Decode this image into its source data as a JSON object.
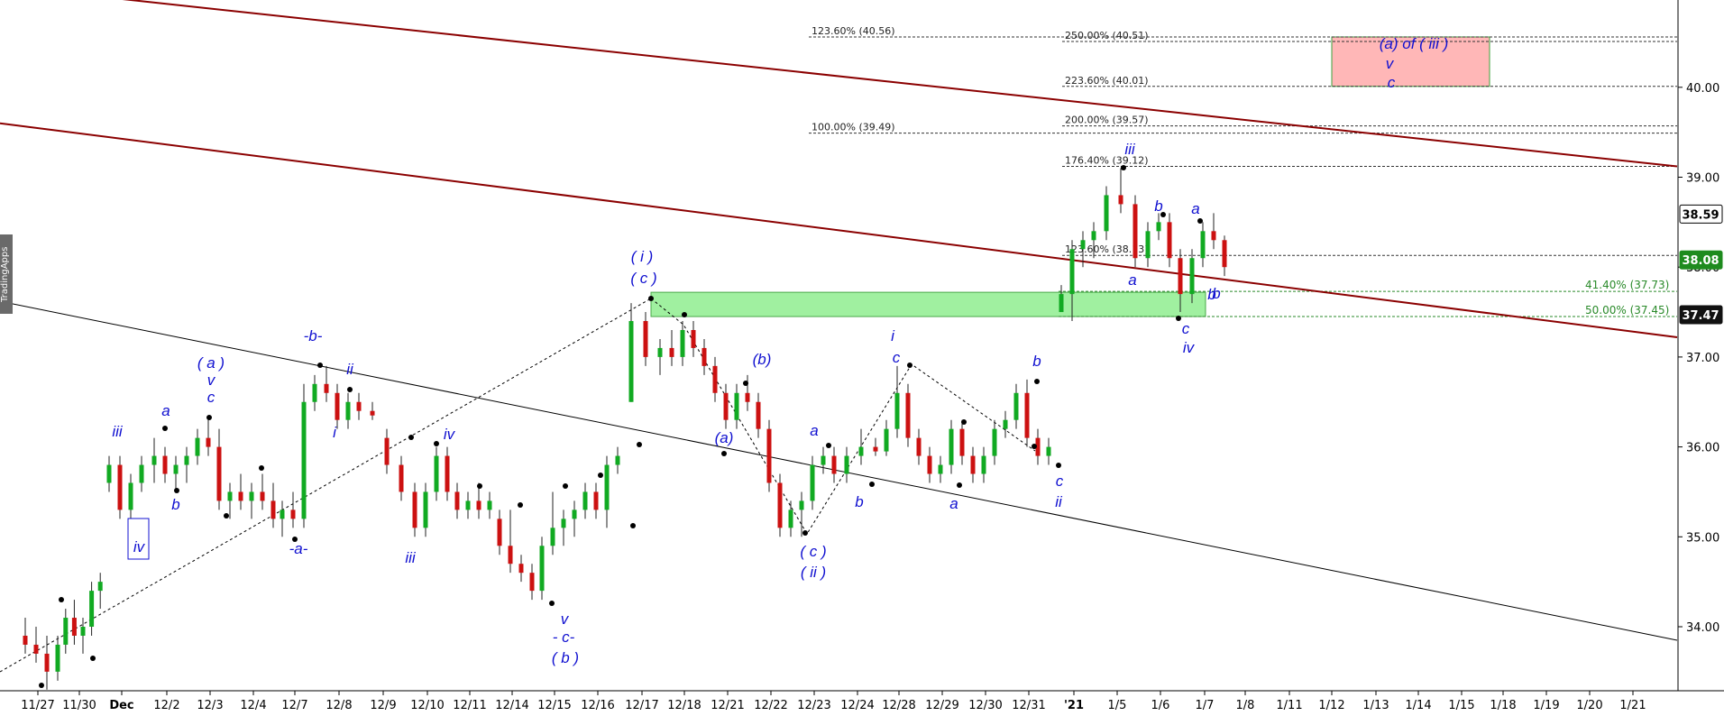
{
  "chart_data": {
    "type": "candlestick",
    "watermark": "TradingApps",
    "y_axis": {
      "ticks": [
        34.0,
        35.0,
        36.0,
        37.0,
        38.0,
        39.0,
        40.0
      ],
      "tick_labels": [
        "34.00",
        "35.00",
        "36.00",
        "37.00",
        "38.00",
        "39.00",
        "40.00"
      ],
      "range": [
        33.3,
        41.0
      ]
    },
    "x_axis": {
      "labels": [
        "11/27",
        "11/30",
        "Dec",
        "12/2",
        "12/3",
        "12/4",
        "12/7",
        "12/8",
        "12/9",
        "12/10",
        "12/11",
        "12/14",
        "12/15",
        "12/16",
        "12/17",
        "12/18",
        "12/21",
        "12/22",
        "12/23",
        "12/24",
        "12/28",
        "12/29",
        "12/30",
        "12/31",
        "'21",
        "1/5",
        "1/6",
        "1/7",
        "1/8",
        "1/11",
        "1/12",
        "1/13",
        "1/14",
        "1/15",
        "1/18",
        "1/19",
        "1/20",
        "1/21"
      ]
    },
    "price_tags": [
      {
        "value": "38.59",
        "price": 38.59,
        "bg": "#ffffff",
        "fg": "#000000",
        "border": "#000000"
      },
      {
        "value": "38.08",
        "price": 38.08,
        "bg": "#1e8b1e",
        "fg": "#ffffff",
        "border": "#1e8b1e"
      },
      {
        "value": "37.47",
        "price": 37.47,
        "bg": "#111111",
        "fg": "#ffffff",
        "border": "#111111"
      }
    ],
    "fib_levels": [
      {
        "label": "123.60% (40.56)",
        "price": 40.56
      },
      {
        "label": "250.00% (40.51)",
        "price": 40.51
      },
      {
        "label": "223.60% (40.01)",
        "price": 40.01
      },
      {
        "label": "100.00% (39.49)",
        "price": 39.49
      },
      {
        "label": "200.00% (39.57)",
        "price": 39.57
      },
      {
        "label": "176.40% (39.12)",
        "price": 39.12
      },
      {
        "label": "123.60% (38.13)",
        "price": 38.13
      },
      {
        "label": "41.40% (37.73)",
        "price": 37.73
      },
      {
        "label": "50.00% (37.45)",
        "price": 37.45
      }
    ],
    "zones": [
      {
        "name": "support-zone",
        "price_top": 37.72,
        "price_bottom": 37.45,
        "from_date": "12/17",
        "to_date": "1/7",
        "color": "#90ee90"
      },
      {
        "name": "target-zone",
        "price_top": 40.56,
        "price_bottom": 40.01,
        "from_date": "1/12",
        "to_date": "1/18",
        "color": "#ffb0b0"
      }
    ],
    "trend_lines": [
      {
        "name": "upper-channel",
        "color": "#8b0000",
        "points": [
          [
            "11/30",
            41.0
          ],
          [
            "1/21",
            39.12
          ]
        ]
      },
      {
        "name": "middle-channel",
        "color": "#8b0000",
        "points": [
          [
            "11/27",
            39.6
          ],
          [
            "1/21",
            37.22
          ]
        ]
      },
      {
        "name": "lower-channel",
        "color": "#000000",
        "points": [
          [
            "11/27",
            37.62
          ],
          [
            "1/21",
            33.85
          ]
        ]
      }
    ],
    "wave_labels": [
      "iii",
      "iv",
      "a",
      "b",
      "( a )",
      "v",
      "c",
      "-b-",
      "ii",
      "i",
      "-a-",
      "iii",
      "iv",
      "v",
      "- c-",
      "( b )",
      "( i )",
      "( c )",
      "(a)",
      "(b)",
      "( c )",
      "( ii )",
      "a",
      "b",
      "i",
      "c",
      "b",
      "a",
      "c",
      "ii",
      "b",
      "iii",
      "b",
      "a",
      "a",
      "c",
      "iv",
      "b",
      "(a) of ( iii )",
      "v",
      "c"
    ],
    "ohlc": [
      {
        "d": "11/27",
        "o": 33.9,
        "h": 34.1,
        "l": 33.7,
        "c": 33.8
      },
      {
        "d": "11/27",
        "o": 33.8,
        "h": 34.0,
        "l": 33.6,
        "c": 33.7
      },
      {
        "d": "11/27",
        "o": 33.7,
        "h": 33.9,
        "l": 33.3,
        "c": 33.5
      },
      {
        "d": "11/27",
        "o": 33.5,
        "h": 33.9,
        "l": 33.4,
        "c": 33.8
      },
      {
        "d": "11/30",
        "o": 33.8,
        "h": 34.2,
        "l": 33.7,
        "c": 34.1
      },
      {
        "d": "11/30",
        "o": 34.1,
        "h": 34.3,
        "l": 33.8,
        "c": 33.9
      },
      {
        "d": "11/30",
        "o": 33.9,
        "h": 34.1,
        "l": 33.7,
        "c": 34.0
      },
      {
        "d": "11/30",
        "o": 34.0,
        "h": 34.5,
        "l": 33.9,
        "c": 34.4
      },
      {
        "d": "11/30",
        "o": 34.4,
        "h": 34.6,
        "l": 34.2,
        "c": 34.5
      },
      {
        "d": "Dec",
        "o": 35.6,
        "h": 35.9,
        "l": 35.5,
        "c": 35.8
      },
      {
        "d": "Dec",
        "o": 35.8,
        "h": 35.9,
        "l": 35.2,
        "c": 35.3
      },
      {
        "d": "Dec",
        "o": 35.3,
        "h": 35.7,
        "l": 35.2,
        "c": 35.6
      },
      {
        "d": "Dec",
        "o": 35.6,
        "h": 35.9,
        "l": 35.5,
        "c": 35.8
      },
      {
        "d": "12/2",
        "o": 35.8,
        "h": 36.1,
        "l": 35.6,
        "c": 35.9
      },
      {
        "d": "12/2",
        "o": 35.9,
        "h": 36.0,
        "l": 35.6,
        "c": 35.7
      },
      {
        "d": "12/2",
        "o": 35.7,
        "h": 35.9,
        "l": 35.5,
        "c": 35.8
      },
      {
        "d": "12/2",
        "o": 35.8,
        "h": 36.0,
        "l": 35.6,
        "c": 35.9
      },
      {
        "d": "12/3",
        "o": 35.9,
        "h": 36.2,
        "l": 35.8,
        "c": 36.1
      },
      {
        "d": "12/3",
        "o": 36.1,
        "h": 36.3,
        "l": 35.9,
        "c": 36.0
      },
      {
        "d": "12/3",
        "o": 36.0,
        "h": 36.2,
        "l": 35.3,
        "c": 35.4
      },
      {
        "d": "12/3",
        "o": 35.4,
        "h": 35.6,
        "l": 35.2,
        "c": 35.5
      },
      {
        "d": "12/4",
        "o": 35.5,
        "h": 35.7,
        "l": 35.3,
        "c": 35.4
      },
      {
        "d": "12/4",
        "o": 35.4,
        "h": 35.6,
        "l": 35.2,
        "c": 35.5
      },
      {
        "d": "12/4",
        "o": 35.5,
        "h": 35.7,
        "l": 35.3,
        "c": 35.4
      },
      {
        "d": "12/4",
        "o": 35.4,
        "h": 35.6,
        "l": 35.1,
        "c": 35.2
      },
      {
        "d": "12/7",
        "o": 35.2,
        "h": 35.4,
        "l": 35.0,
        "c": 35.3
      },
      {
        "d": "12/7",
        "o": 35.3,
        "h": 35.5,
        "l": 35.1,
        "c": 35.2
      },
      {
        "d": "12/7",
        "o": 35.2,
        "h": 36.7,
        "l": 35.1,
        "c": 36.5
      },
      {
        "d": "12/7",
        "o": 36.5,
        "h": 36.8,
        "l": 36.4,
        "c": 36.7
      },
      {
        "d": "12/8",
        "o": 36.7,
        "h": 36.9,
        "l": 36.5,
        "c": 36.6
      },
      {
        "d": "12/8",
        "o": 36.6,
        "h": 36.7,
        "l": 36.2,
        "c": 36.3
      },
      {
        "d": "12/8",
        "o": 36.3,
        "h": 36.6,
        "l": 36.2,
        "c": 36.5
      },
      {
        "d": "12/8",
        "o": 36.5,
        "h": 36.6,
        "l": 36.3,
        "c": 36.4
      },
      {
        "d": "12/9",
        "o": 36.4,
        "h": 36.5,
        "l": 36.3,
        "c": 36.35
      },
      {
        "d": "12/9",
        "o": 36.1,
        "h": 36.2,
        "l": 35.7,
        "c": 35.8
      },
      {
        "d": "12/9",
        "o": 35.8,
        "h": 35.9,
        "l": 35.4,
        "c": 35.5
      },
      {
        "d": "12/10",
        "o": 35.5,
        "h": 35.6,
        "l": 35.0,
        "c": 35.1
      },
      {
        "d": "12/10",
        "o": 35.1,
        "h": 35.6,
        "l": 35.0,
        "c": 35.5
      },
      {
        "d": "12/10",
        "o": 35.5,
        "h": 36.0,
        "l": 35.4,
        "c": 35.9
      },
      {
        "d": "12/10",
        "o": 35.9,
        "h": 36.0,
        "l": 35.4,
        "c": 35.5
      },
      {
        "d": "12/11",
        "o": 35.5,
        "h": 35.6,
        "l": 35.2,
        "c": 35.3
      },
      {
        "d": "12/11",
        "o": 35.3,
        "h": 35.5,
        "l": 35.2,
        "c": 35.4
      },
      {
        "d": "12/11",
        "o": 35.4,
        "h": 35.6,
        "l": 35.2,
        "c": 35.3
      },
      {
        "d": "12/11",
        "o": 35.3,
        "h": 35.5,
        "l": 35.2,
        "c": 35.4
      },
      {
        "d": "12/14",
        "o": 35.2,
        "h": 35.3,
        "l": 34.8,
        "c": 34.9
      },
      {
        "d": "12/14",
        "o": 34.9,
        "h": 35.3,
        "l": 34.6,
        "c": 34.7
      },
      {
        "d": "12/14",
        "o": 34.7,
        "h": 34.8,
        "l": 34.5,
        "c": 34.6
      },
      {
        "d": "12/14",
        "o": 34.6,
        "h": 34.7,
        "l": 34.3,
        "c": 34.4
      },
      {
        "d": "12/15",
        "o": 34.4,
        "h": 35.0,
        "l": 34.3,
        "c": 34.9
      },
      {
        "d": "12/15",
        "o": 34.9,
        "h": 35.5,
        "l": 34.8,
        "c": 35.1
      },
      {
        "d": "12/15",
        "o": 35.1,
        "h": 35.3,
        "l": 34.9,
        "c": 35.2
      },
      {
        "d": "12/15",
        "o": 35.2,
        "h": 35.4,
        "l": 35.0,
        "c": 35.3
      },
      {
        "d": "12/16",
        "o": 35.3,
        "h": 35.6,
        "l": 35.2,
        "c": 35.5
      },
      {
        "d": "12/16",
        "o": 35.5,
        "h": 35.6,
        "l": 35.2,
        "c": 35.3
      },
      {
        "d": "12/16",
        "o": 35.3,
        "h": 35.9,
        "l": 35.1,
        "c": 35.8
      },
      {
        "d": "12/16",
        "o": 35.8,
        "h": 36.0,
        "l": 35.7,
        "c": 35.9
      },
      {
        "d": "12/17",
        "o": 36.5,
        "h": 37.6,
        "l": 36.5,
        "c": 37.4
      },
      {
        "d": "12/17",
        "o": 37.4,
        "h": 37.5,
        "l": 36.9,
        "c": 37.0
      },
      {
        "d": "12/17",
        "o": 37.0,
        "h": 37.2,
        "l": 36.8,
        "c": 37.1
      },
      {
        "d": "12/18",
        "o": 37.1,
        "h": 37.3,
        "l": 36.9,
        "c": 37.0
      },
      {
        "d": "12/18",
        "o": 37.0,
        "h": 37.4,
        "l": 36.9,
        "c": 37.3
      },
      {
        "d": "12/18",
        "o": 37.3,
        "h": 37.4,
        "l": 37.0,
        "c": 37.1
      },
      {
        "d": "12/18",
        "o": 37.1,
        "h": 37.2,
        "l": 36.8,
        "c": 36.9
      },
      {
        "d": "12/21",
        "o": 36.9,
        "h": 37.0,
        "l": 36.5,
        "c": 36.6
      },
      {
        "d": "12/21",
        "o": 36.6,
        "h": 36.7,
        "l": 36.2,
        "c": 36.3
      },
      {
        "d": "12/21",
        "o": 36.3,
        "h": 36.7,
        "l": 36.2,
        "c": 36.6
      },
      {
        "d": "12/21",
        "o": 36.6,
        "h": 36.8,
        "l": 36.4,
        "c": 36.5
      },
      {
        "d": "12/22",
        "o": 36.5,
        "h": 36.6,
        "l": 36.1,
        "c": 36.2
      },
      {
        "d": "12/22",
        "o": 36.2,
        "h": 36.3,
        "l": 35.5,
        "c": 35.6
      },
      {
        "d": "12/22",
        "o": 35.6,
        "h": 35.7,
        "l": 35.0,
        "c": 35.1
      },
      {
        "d": "12/22",
        "o": 35.1,
        "h": 35.4,
        "l": 35.0,
        "c": 35.3
      },
      {
        "d": "12/23",
        "o": 35.3,
        "h": 35.5,
        "l": 35.0,
        "c": 35.4
      },
      {
        "d": "12/23",
        "o": 35.4,
        "h": 35.9,
        "l": 35.3,
        "c": 35.8
      },
      {
        "d": "12/23",
        "o": 35.8,
        "h": 36.0,
        "l": 35.7,
        "c": 35.9
      },
      {
        "d": "12/23",
        "o": 35.9,
        "h": 36.0,
        "l": 35.6,
        "c": 35.7
      },
      {
        "d": "12/24",
        "o": 35.7,
        "h": 36.0,
        "l": 35.6,
        "c": 35.9
      },
      {
        "d": "12/24",
        "o": 35.9,
        "h": 36.2,
        "l": 35.8,
        "c": 36.0
      },
      {
        "d": "12/24",
        "o": 36.0,
        "h": 36.1,
        "l": 35.9,
        "c": 35.95
      },
      {
        "d": "12/28",
        "o": 35.95,
        "h": 36.3,
        "l": 35.9,
        "c": 36.2
      },
      {
        "d": "12/28",
        "o": 36.2,
        "h": 36.9,
        "l": 36.1,
        "c": 36.6
      },
      {
        "d": "12/28",
        "o": 36.6,
        "h": 36.7,
        "l": 36.0,
        "c": 36.1
      },
      {
        "d": "12/28",
        "o": 36.1,
        "h": 36.2,
        "l": 35.8,
        "c": 35.9
      },
      {
        "d": "12/29",
        "o": 35.9,
        "h": 36.0,
        "l": 35.6,
        "c": 35.7
      },
      {
        "d": "12/29",
        "o": 35.7,
        "h": 35.9,
        "l": 35.6,
        "c": 35.8
      },
      {
        "d": "12/29",
        "o": 35.8,
        "h": 36.3,
        "l": 35.7,
        "c": 36.2
      },
      {
        "d": "12/29",
        "o": 36.2,
        "h": 36.3,
        "l": 35.8,
        "c": 35.9
      },
      {
        "d": "12/30",
        "o": 35.9,
        "h": 36.0,
        "l": 35.6,
        "c": 35.7
      },
      {
        "d": "12/30",
        "o": 35.7,
        "h": 36.0,
        "l": 35.6,
        "c": 35.9
      },
      {
        "d": "12/30",
        "o": 35.9,
        "h": 36.3,
        "l": 35.8,
        "c": 36.2
      },
      {
        "d": "12/30",
        "o": 36.2,
        "h": 36.4,
        "l": 36.1,
        "c": 36.3
      },
      {
        "d": "12/31",
        "o": 36.3,
        "h": 36.7,
        "l": 36.2,
        "c": 36.6
      },
      {
        "d": "12/31",
        "o": 36.6,
        "h": 36.75,
        "l": 36.0,
        "c": 36.1
      },
      {
        "d": "12/31",
        "o": 36.1,
        "h": 36.2,
        "l": 35.8,
        "c": 35.9
      },
      {
        "d": "12/31",
        "o": 35.9,
        "h": 36.1,
        "l": 35.8,
        "c": 36.0
      },
      {
        "d": "'21",
        "o": 37.5,
        "h": 37.8,
        "l": 37.5,
        "c": 37.7
      },
      {
        "d": "'21",
        "o": 37.7,
        "h": 38.3,
        "l": 37.4,
        "c": 38.2
      },
      {
        "d": "'21",
        "o": 38.2,
        "h": 38.4,
        "l": 38.0,
        "c": 38.3
      },
      {
        "d": "'21",
        "o": 38.3,
        "h": 38.5,
        "l": 38.1,
        "c": 38.4
      },
      {
        "d": "1/5",
        "o": 38.4,
        "h": 38.9,
        "l": 38.3,
        "c": 38.8
      },
      {
        "d": "1/5",
        "o": 38.8,
        "h": 39.1,
        "l": 38.6,
        "c": 38.7
      },
      {
        "d": "1/5",
        "o": 38.7,
        "h": 38.8,
        "l": 38.0,
        "c": 38.1
      },
      {
        "d": "1/6",
        "o": 38.1,
        "h": 38.5,
        "l": 38.0,
        "c": 38.4
      },
      {
        "d": "1/6",
        "o": 38.4,
        "h": 38.6,
        "l": 38.3,
        "c": 38.5
      },
      {
        "d": "1/6",
        "o": 38.5,
        "h": 38.6,
        "l": 38.0,
        "c": 38.1
      },
      {
        "d": "1/6",
        "o": 38.1,
        "h": 38.2,
        "l": 37.5,
        "c": 37.7
      },
      {
        "d": "1/7",
        "o": 37.7,
        "h": 38.2,
        "l": 37.6,
        "c": 38.1
      },
      {
        "d": "1/7",
        "o": 38.1,
        "h": 38.5,
        "l": 38.0,
        "c": 38.4
      },
      {
        "d": "1/7",
        "o": 38.4,
        "h": 38.6,
        "l": 38.2,
        "c": 38.3
      },
      {
        "d": "1/7",
        "o": 38.3,
        "h": 38.35,
        "l": 37.9,
        "c": 38.0
      }
    ]
  }
}
